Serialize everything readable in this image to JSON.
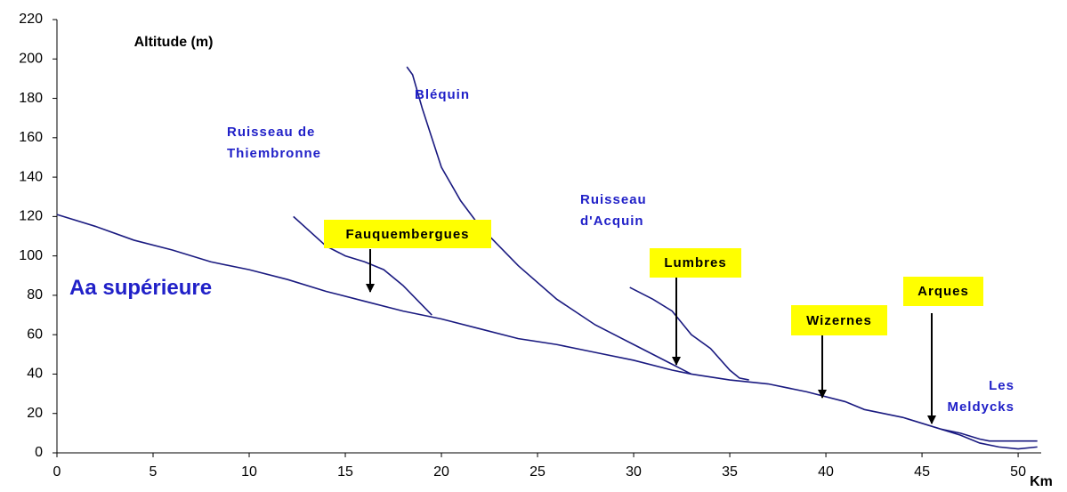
{
  "chart_data": {
    "type": "line",
    "y_label": "Altitude (m)",
    "x_label": "Km",
    "xlim": [
      0,
      51.2
    ],
    "ylim": [
      0,
      220
    ],
    "xticks": [
      0,
      5,
      10,
      15,
      20,
      25,
      30,
      35,
      40,
      45,
      50
    ],
    "yticks": [
      0,
      20,
      40,
      60,
      80,
      100,
      120,
      140,
      160,
      180,
      200,
      220
    ],
    "color": "#1a1a80",
    "series": [
      {
        "name": "Aa supérieure",
        "x": [
          0,
          2,
          4,
          6,
          8,
          10,
          12,
          14,
          16,
          18,
          20,
          22,
          24,
          26,
          28,
          30,
          32,
          33,
          35,
          37,
          39,
          41,
          42,
          44,
          46,
          47,
          48,
          49,
          50,
          51
        ],
        "values": [
          121,
          115,
          108,
          103,
          97,
          93,
          88,
          82,
          77,
          72,
          68,
          63,
          58,
          55,
          51,
          47,
          42,
          40,
          37,
          35,
          31,
          26,
          22,
          18,
          12,
          9,
          5,
          3,
          2,
          3
        ]
      },
      {
        "name": "Ruisseau de Thiembronne",
        "x": [
          12.3,
          14,
          15,
          16,
          17,
          18,
          19.5
        ],
        "values": [
          120,
          105,
          100,
          97,
          93,
          85,
          70
        ]
      },
      {
        "name": "Bléquin",
        "x": [
          18.2,
          18.5,
          19,
          19.5,
          20,
          21,
          22,
          24,
          26,
          28,
          30,
          32,
          33
        ],
        "values": [
          196,
          192,
          175,
          160,
          145,
          128,
          115,
          95,
          78,
          65,
          55,
          45,
          40
        ]
      },
      {
        "name": "Ruisseau d'Acquin",
        "x": [
          29.8,
          31,
          32,
          33,
          34,
          35,
          35.5,
          36
        ],
        "values": [
          84,
          78,
          72,
          60,
          53,
          42,
          38,
          37
        ]
      },
      {
        "name": "Les Meldycks",
        "x": [
          46,
          47,
          48,
          48.5,
          51
        ],
        "values": [
          12,
          10,
          7,
          6,
          6
        ]
      }
    ],
    "annotations": [
      "Fauquembergues",
      "Lumbres",
      "Wizernes",
      "Arques"
    ]
  }
}
